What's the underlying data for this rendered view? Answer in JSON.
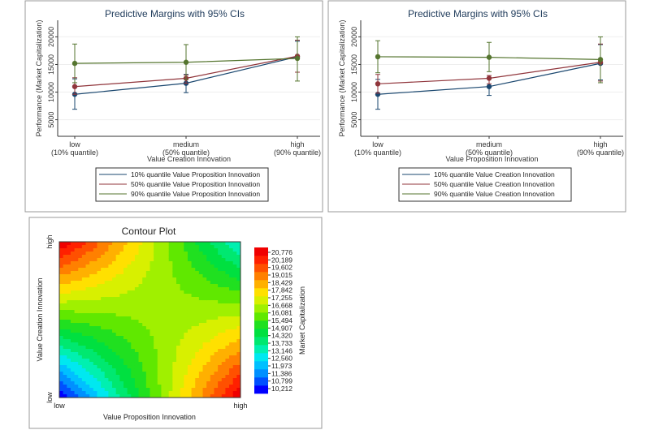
{
  "chart_data": [
    {
      "type": "line",
      "title": "Predictive Margins with 95% CIs",
      "xlabel": "Value Creation Innovation",
      "ylabel": "Performance (Market Capitalization)",
      "categories": [
        "low\n(10% quantile)",
        "medium\n(50% quantile)",
        "high\n(90% quantile)"
      ],
      "x": [
        10,
        50,
        90
      ],
      "yticks": [
        5000,
        10000,
        15000,
        20000
      ],
      "ylim": [
        2000,
        23000
      ],
      "grid": true,
      "legend": "bottom",
      "series": [
        {
          "name": "10% quantile Value Proposition Innovation",
          "color": "#1a476f",
          "values": [
            9600,
            11600,
            16400
          ],
          "ci_low": [
            6900,
            9900,
            13600
          ],
          "ci_high": [
            12400,
            13200,
            19200
          ]
        },
        {
          "name": "50% quantile Value Proposition Innovation",
          "color": "#90353b",
          "values": [
            11000,
            12500,
            16500
          ],
          "ci_low": [
            9600,
            11600,
            13600
          ],
          "ci_high": [
            12600,
            13100,
            19400
          ]
        },
        {
          "name": "90% quantile Value Proposition Innovation",
          "color": "#55752f",
          "values": [
            15200,
            15400,
            16100
          ],
          "ci_low": [
            11700,
            12300,
            12000
          ],
          "ci_high": [
            18700,
            18600,
            20000
          ]
        }
      ]
    },
    {
      "type": "line",
      "title": "Predictive Margins with 95% CIs",
      "xlabel": "Value Proposition Innovation",
      "ylabel": "Performance (Market Capitalization)",
      "categories": [
        "low\n(10% quantile)",
        "medium\n(50% quantile)",
        "high\n(90% quantile)"
      ],
      "x": [
        10,
        50,
        90
      ],
      "yticks": [
        5000,
        10000,
        15000,
        20000
      ],
      "ylim": [
        2000,
        23000
      ],
      "grid": true,
      "legend": "bottom",
      "series": [
        {
          "name": "10% quantile Value Creation Innovation",
          "color": "#1a476f",
          "values": [
            9600,
            11000,
            15200
          ],
          "ci_low": [
            6900,
            9400,
            12200
          ],
          "ci_high": [
            12300,
            12600,
            18600
          ]
        },
        {
          "name": "50% quantile Value Creation Innovation",
          "color": "#90353b",
          "values": [
            11500,
            12500,
            15400
          ],
          "ci_low": [
            9800,
            11500,
            12000
          ],
          "ci_high": [
            13200,
            13000,
            18700
          ]
        },
        {
          "name": "90% quantile Value Creation Innovation",
          "color": "#55752f",
          "values": [
            16400,
            16300,
            15900
          ],
          "ci_low": [
            13500,
            13700,
            11700
          ],
          "ci_high": [
            19300,
            19000,
            20000
          ]
        }
      ]
    },
    {
      "type": "heatmap",
      "title": "Contour Plot",
      "xlabel": "Value Proposition Innovation",
      "ylabel": "Value Creation Innovation",
      "xticks": [
        "low",
        "high"
      ],
      "yticks": [
        "low",
        "high"
      ],
      "colorbar_label": "Market Capitalization",
      "levels": [
        "20,776",
        "20,189",
        "19,602",
        "19,015",
        "18,429",
        "17,842",
        "17,255",
        "16,668",
        "16,081",
        "15,494",
        "14,907",
        "14,320",
        "13,733",
        "13,146",
        "12,560",
        "11,973",
        "11,386",
        "10,799",
        "10,212"
      ],
      "corner_values": {
        "low_low": 10212,
        "low_high": 20776,
        "high_low": 20776,
        "high_high": 13000
      },
      "palette": [
        "#0000ff",
        "#0050ff",
        "#0090ff",
        "#00c0ff",
        "#00e8f0",
        "#00f0b0",
        "#00e870",
        "#00e040",
        "#20e020",
        "#60e800",
        "#a0f000",
        "#d8f000",
        "#ffe000",
        "#ffb000",
        "#ff8000",
        "#ff5000",
        "#ff2000",
        "#f00000"
      ]
    }
  ]
}
